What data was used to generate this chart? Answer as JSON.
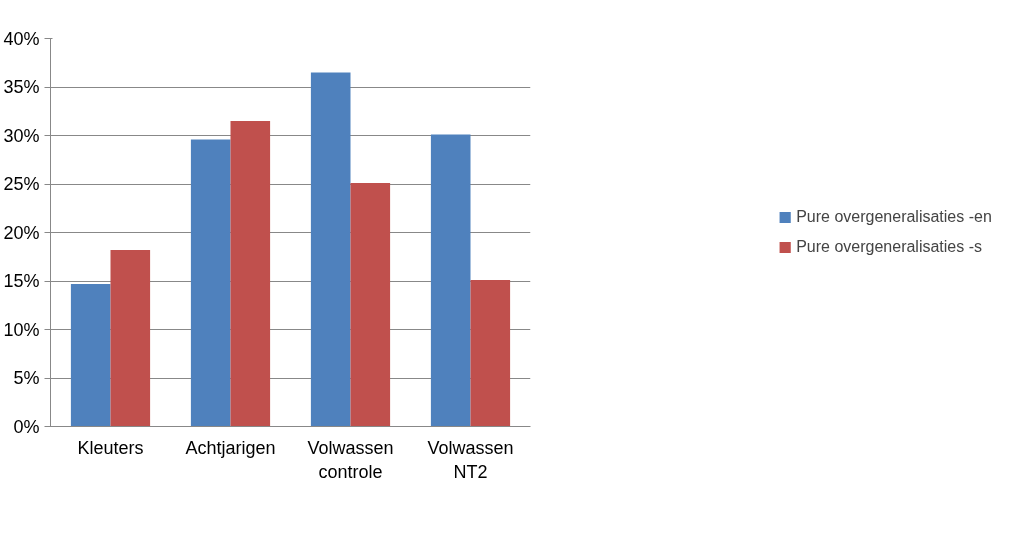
{
  "chart_data": {
    "type": "bar",
    "categories": [
      "Kleuters",
      "Achtjarigen",
      "Volwassen controle",
      "Volwassen NT2"
    ],
    "series": [
      {
        "name": "Pure overgeneralisaties -en",
        "color": "#4f81bd",
        "values": [
          14.7,
          29.6,
          36.5,
          30.1
        ]
      },
      {
        "name": "Pure overgeneralisaties -s",
        "color": "#c0504d",
        "values": [
          18.2,
          31.5,
          25.1,
          15.1
        ]
      }
    ],
    "ylim": [
      0,
      40
    ],
    "yticks": [
      {
        "value": 0,
        "label": "0%"
      },
      {
        "value": 5,
        "label": "5%"
      },
      {
        "value": 10,
        "label": "10%"
      },
      {
        "value": 15,
        "label": "15%"
      },
      {
        "value": 20,
        "label": "20%"
      },
      {
        "value": 25,
        "label": "25%"
      },
      {
        "value": 30,
        "label": "30%"
      },
      {
        "value": 35,
        "label": "35%"
      },
      {
        "value": 40,
        "label": "40%"
      }
    ],
    "grid": "y",
    "legend": "right"
  }
}
